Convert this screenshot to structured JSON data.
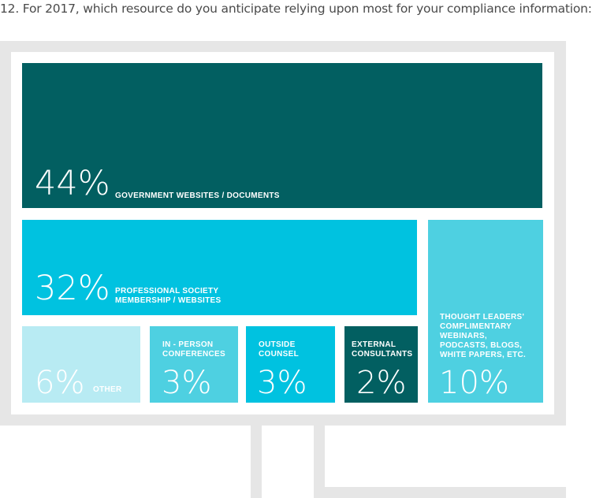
{
  "question": "12. For 2017, which resource do you anticipate relying upon most for your compliance information:",
  "chart_data": {
    "type": "treemap",
    "items": [
      {
        "value": 44,
        "percent_text": "44%",
        "label_lines": [
          "GOVERNMENT WEBSITES / DOCUMENTS"
        ],
        "color": "#025f61"
      },
      {
        "value": 32,
        "percent_text": "32%",
        "label_lines": [
          "PROFESSIONAL SOCIETY",
          "MEMBERSHIP / WEBSITES"
        ],
        "color": "#00c2e0"
      },
      {
        "value": 10,
        "percent_text": "10%",
        "label_lines": [
          "THOUGHT LEADERS'",
          "COMPLIMENTARY",
          "WEBINARS,",
          "PODCASTS, BLOGS,",
          "WHITE PAPERS, ETC."
        ],
        "color": "#4ed0e1"
      },
      {
        "value": 6,
        "percent_text": "6%",
        "label_lines": [
          "OTHER"
        ],
        "color": "#b8ebf3"
      },
      {
        "value": 3,
        "percent_text": "3%",
        "label_lines": [
          "IN - PERSON",
          "CONFERENCES"
        ],
        "color": "#4ed0e1"
      },
      {
        "value": 3,
        "percent_text": "3%",
        "label_lines": [
          "OUTSIDE",
          "COUNSEL"
        ],
        "color": "#00c2e0"
      },
      {
        "value": 2,
        "percent_text": "2%",
        "label_lines": [
          "EXTERNAL",
          "CONSULTANTS"
        ],
        "color": "#025f61"
      }
    ]
  }
}
